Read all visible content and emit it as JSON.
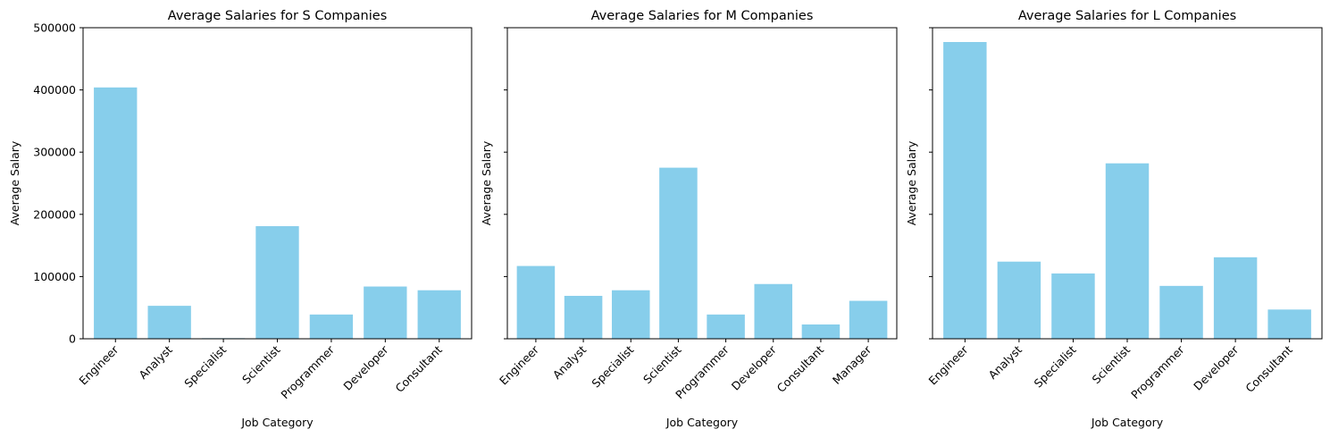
{
  "chart_data": [
    {
      "type": "bar",
      "title": "Average Salaries for S Companies",
      "xlabel": "Job Category",
      "ylabel": "Average Salary",
      "categories": [
        "Engineer",
        "Analyst",
        "Specialist",
        "Scientist",
        "Programmer",
        "Developer",
        "Consultant"
      ],
      "values": [
        404000,
        53000,
        1000,
        181000,
        39000,
        84000,
        78000
      ],
      "ylim": [
        0,
        500000
      ],
      "yticks": [
        "0",
        "100000",
        "200000",
        "300000",
        "400000",
        "500000"
      ],
      "show_ytick_labels": true,
      "bar_color": "#87ceeb",
      "grid": false
    },
    {
      "type": "bar",
      "title": "Average Salaries for M Companies",
      "xlabel": "Job Category",
      "ylabel": "Average Salary",
      "categories": [
        "Engineer",
        "Analyst",
        "Specialist",
        "Scientist",
        "Programmer",
        "Developer",
        "Consultant",
        "Manager"
      ],
      "values": [
        117000,
        69000,
        78000,
        275000,
        39000,
        88000,
        23000,
        61000
      ],
      "ylim": [
        0,
        500000
      ],
      "yticks": [
        "0",
        "100000",
        "200000",
        "300000",
        "400000",
        "500000"
      ],
      "show_ytick_labels": false,
      "bar_color": "#87ceeb",
      "grid": false
    },
    {
      "type": "bar",
      "title": "Average Salaries for L Companies",
      "xlabel": "Job Category",
      "ylabel": "Average Salary",
      "categories": [
        "Engineer",
        "Analyst",
        "Specialist",
        "Scientist",
        "Programmer",
        "Developer",
        "Consultant"
      ],
      "values": [
        477000,
        124000,
        105000,
        282000,
        85000,
        131000,
        47000
      ],
      "ylim": [
        0,
        500000
      ],
      "yticks": [
        "0",
        "100000",
        "200000",
        "300000",
        "400000",
        "500000"
      ],
      "show_ytick_labels": false,
      "bar_color": "#87ceeb",
      "grid": false
    }
  ]
}
